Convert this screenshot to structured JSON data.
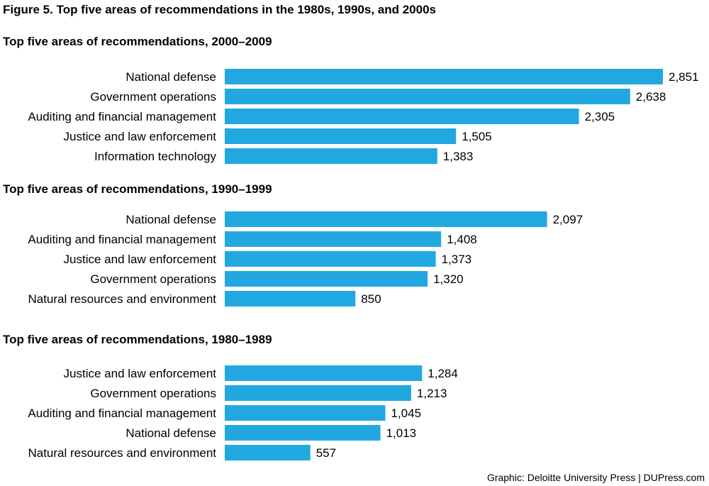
{
  "figure_title": "Figure 5. Top five areas of recommendations in the 1980s, 1990s, and 2000s",
  "source": "Graphic: Deloitte University Press  |  DUPress.com",
  "colors": {
    "bar": "#22a8e1"
  },
  "chart_data": [
    {
      "type": "bar",
      "orientation": "horizontal",
      "title": "Top five areas of recommendations, 2000–2009",
      "categories": [
        "National defense",
        "Government operations",
        "Auditing and financial management",
        "Justice and law enforcement",
        "Information technology"
      ],
      "values": [
        2851,
        2638,
        2305,
        1505,
        1383
      ],
      "value_labels": [
        "2,851",
        "2,638",
        "2,305",
        "1,505",
        "1,383"
      ]
    },
    {
      "type": "bar",
      "orientation": "horizontal",
      "title": "Top five areas of recommendations, 1990–1999",
      "categories": [
        "National defense",
        "Auditing and financial management",
        "Justice and law enforcement",
        "Government operations",
        "Natural resources and environment"
      ],
      "values": [
        2097,
        1408,
        1373,
        1320,
        850
      ],
      "value_labels": [
        "2,097",
        "1,408",
        "1,373",
        "1,320",
        "850"
      ]
    },
    {
      "type": "bar",
      "orientation": "horizontal",
      "title": "Top five areas of recommendations, 1980–1989",
      "categories": [
        "Justice and law enforcement",
        "Government operations",
        "Auditing and financial management",
        "National defense",
        "Natural resources and environment"
      ],
      "values": [
        1284,
        1213,
        1045,
        1013,
        557
      ],
      "value_labels": [
        "1,284",
        "1,213",
        "1,045",
        "1,013",
        "557"
      ]
    }
  ]
}
